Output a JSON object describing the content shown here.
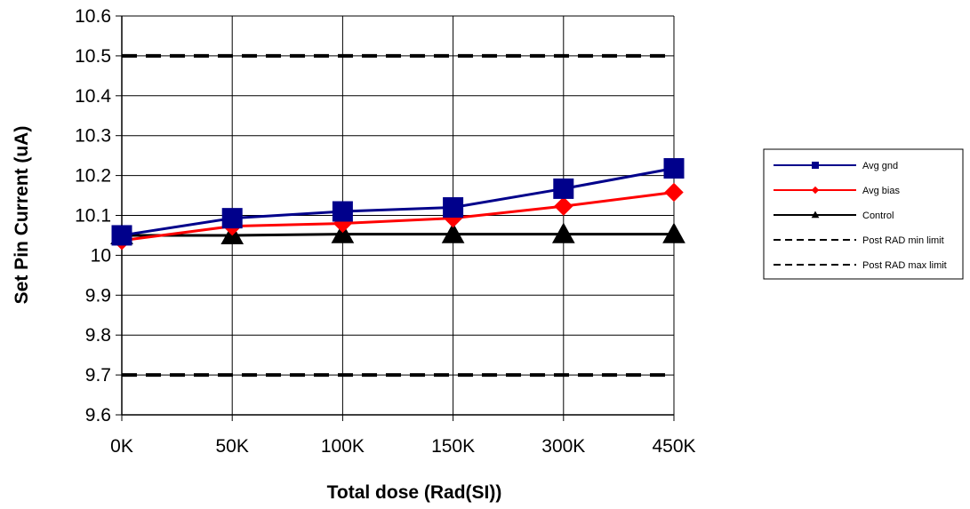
{
  "chart_data": {
    "type": "line",
    "categories": [
      "0K",
      "50K",
      "100K",
      "150K",
      "300K",
      "450K"
    ],
    "xlabel": "Total dose (Rad(SI))",
    "ylabel": "Set Pin Current (uA)",
    "ylim": [
      9.6,
      10.6
    ],
    "yticks": [
      "10.6",
      "10.5",
      "10.4",
      "10.3",
      "10.2",
      "10.1",
      "10",
      "9.9",
      "9.8",
      "9.7",
      "9.6"
    ],
    "grid": true,
    "legend_position": "right",
    "series": [
      {
        "name": "Avg gnd",
        "values": [
          10.05,
          10.093,
          10.11,
          10.12,
          10.167,
          10.218
        ],
        "color": "#00008b",
        "marker": "square",
        "line": "solid"
      },
      {
        "name": "Avg bias",
        "values": [
          10.037,
          10.073,
          10.08,
          10.093,
          10.123,
          10.158
        ],
        "color": "#ff0000",
        "marker": "diamond",
        "line": "solid"
      },
      {
        "name": "Control",
        "values": [
          10.05,
          10.05,
          10.053,
          10.053,
          10.053,
          10.053
        ],
        "color": "#000000",
        "marker": "triangle",
        "line": "solid"
      },
      {
        "name": "Post RAD min limit",
        "values": [
          9.7,
          9.7,
          9.7,
          9.7,
          9.7,
          9.7
        ],
        "color": "#000000",
        "marker": "none",
        "line": "dashed"
      },
      {
        "name": "Post RAD max limit",
        "values": [
          10.5,
          10.5,
          10.5,
          10.5,
          10.5,
          10.5
        ],
        "color": "#000000",
        "marker": "none",
        "line": "dashed"
      }
    ]
  }
}
